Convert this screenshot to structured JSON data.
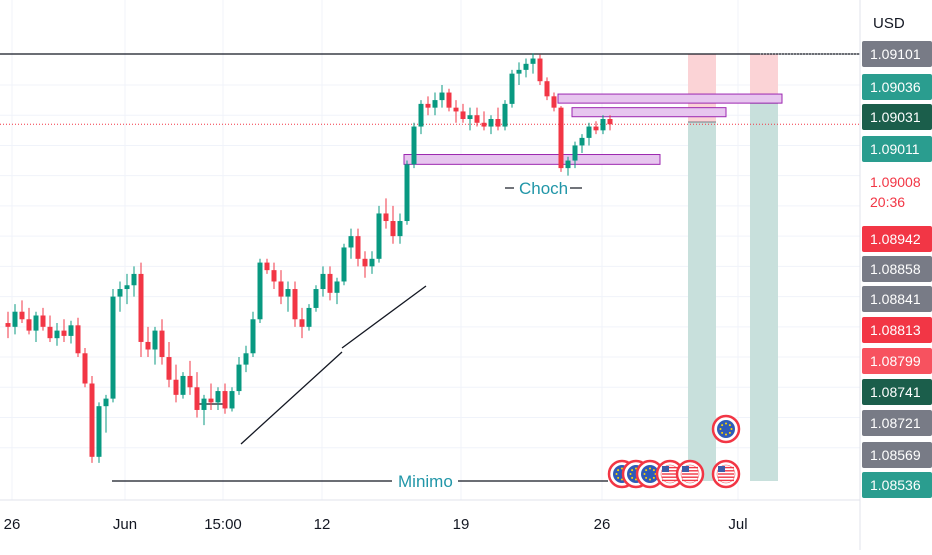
{
  "chart_data": {
    "type": "candlestick",
    "currency": "USD",
    "x_ticks": [
      "26",
      "Jun",
      "15:00",
      "12",
      "19",
      "26",
      "Jul"
    ],
    "price_range": [
      1.0852,
      1.0913
    ],
    "candles": [
      [
        1.08745,
        1.0876,
        1.08725,
        1.0874
      ],
      [
        1.0874,
        1.0877,
        1.0873,
        1.0876
      ],
      [
        1.0876,
        1.08775,
        1.08745,
        1.0875
      ],
      [
        1.0875,
        1.08765,
        1.0873,
        1.08735
      ],
      [
        1.08735,
        1.0876,
        1.0872,
        1.08755
      ],
      [
        1.08755,
        1.08765,
        1.08735,
        1.0874
      ],
      [
        1.0874,
        1.08755,
        1.0872,
        1.08725
      ],
      [
        1.08725,
        1.08745,
        1.08715,
        1.08735
      ],
      [
        1.08735,
        1.0875,
        1.0872,
        1.08728
      ],
      [
        1.08728,
        1.08748,
        1.08718,
        1.08742
      ],
      [
        1.08742,
        1.08752,
        1.087,
        1.08705
      ],
      [
        1.08705,
        1.08712,
        1.0866,
        1.08665
      ],
      [
        1.08665,
        1.08675,
        1.0856,
        1.08568
      ],
      [
        1.08568,
        1.0864,
        1.0856,
        1.08635
      ],
      [
        1.08635,
        1.0865,
        1.086,
        1.08645
      ],
      [
        1.08645,
        1.0879,
        1.0864,
        1.0878
      ],
      [
        1.0878,
        1.088,
        1.0876,
        1.0879
      ],
      [
        1.0879,
        1.0881,
        1.0877,
        1.08795
      ],
      [
        1.08795,
        1.0882,
        1.0878,
        1.0881
      ],
      [
        1.0881,
        1.08825,
        1.087,
        1.0872
      ],
      [
        1.0872,
        1.0874,
        1.087,
        1.0871
      ],
      [
        1.0871,
        1.0874,
        1.0869,
        1.08735
      ],
      [
        1.08735,
        1.0875,
        1.0869,
        1.087
      ],
      [
        1.087,
        1.0872,
        1.0866,
        1.0867
      ],
      [
        1.0867,
        1.0869,
        1.0864,
        1.0865
      ],
      [
        1.0865,
        1.0868,
        1.08645,
        1.08675
      ],
      [
        1.08675,
        1.08695,
        1.0865,
        1.0866
      ],
      [
        1.0866,
        1.0868,
        1.0862,
        1.0863
      ],
      [
        1.0863,
        1.0865,
        1.0861,
        1.08645
      ],
      [
        1.08645,
        1.08665,
        1.0863,
        1.0864
      ],
      [
        1.0864,
        1.0866,
        1.0863,
        1.08655
      ],
      [
        1.08655,
        1.08665,
        1.08625,
        1.08632
      ],
      [
        1.08632,
        1.0866,
        1.08628,
        1.08655
      ],
      [
        1.08655,
        1.087,
        1.0865,
        1.0869
      ],
      [
        1.0869,
        1.08715,
        1.0868,
        1.08705
      ],
      [
        1.08705,
        1.0876,
        1.087,
        1.0875
      ],
      [
        1.0875,
        1.0883,
        1.08745,
        1.08825
      ],
      [
        1.08825,
        1.0883,
        1.0881,
        1.08815
      ],
      [
        1.08815,
        1.08825,
        1.0879,
        1.088
      ],
      [
        1.088,
        1.08815,
        1.0877,
        1.0878
      ],
      [
        1.0878,
        1.088,
        1.0876,
        1.0879
      ],
      [
        1.0879,
        1.088,
        1.0874,
        1.0875
      ],
      [
        1.0875,
        1.08765,
        1.08725,
        1.0874
      ],
      [
        1.0874,
        1.0877,
        1.08735,
        1.08765
      ],
      [
        1.08765,
        1.08795,
        1.0876,
        1.0879
      ],
      [
        1.0879,
        1.0882,
        1.0878,
        1.0881
      ],
      [
        1.0881,
        1.0882,
        1.08775,
        1.08785
      ],
      [
        1.08785,
        1.08805,
        1.0877,
        1.088
      ],
      [
        1.088,
        1.0885,
        1.08795,
        1.08845
      ],
      [
        1.08845,
        1.0887,
        1.0883,
        1.0886
      ],
      [
        1.0886,
        1.0887,
        1.0882,
        1.0883
      ],
      [
        1.0883,
        1.0884,
        1.08805,
        1.0882
      ],
      [
        1.0882,
        1.0884,
        1.0881,
        1.0883
      ],
      [
        1.0883,
        1.089,
        1.08825,
        1.0889
      ],
      [
        1.0889,
        1.0891,
        1.0887,
        1.0888
      ],
      [
        1.0888,
        1.089,
        1.0885,
        1.0886
      ],
      [
        1.0886,
        1.0889,
        1.0885,
        1.0888
      ],
      [
        1.0888,
        1.0896,
        1.08875,
        1.08955
      ],
      [
        1.08955,
        1.0901,
        1.0895,
        1.09005
      ],
      [
        1.09005,
        1.0904,
        1.08995,
        1.09035
      ],
      [
        1.09035,
        1.09045,
        1.0902,
        1.0903
      ],
      [
        1.0903,
        1.0905,
        1.0902,
        1.0904
      ],
      [
        1.0904,
        1.0906,
        1.0903,
        1.0905
      ],
      [
        1.0905,
        1.09055,
        1.09025,
        1.0903
      ],
      [
        1.0903,
        1.0904,
        1.0901,
        1.09025
      ],
      [
        1.09025,
        1.09035,
        1.0901,
        1.09015
      ],
      [
        1.09015,
        1.0903,
        1.09,
        1.0902
      ],
      [
        1.0902,
        1.0903,
        1.09005,
        1.0901
      ],
      [
        1.0901,
        1.09025,
        1.09,
        1.09005
      ],
      [
        1.09005,
        1.0902,
        1.08995,
        1.09015
      ],
      [
        1.09015,
        1.0903,
        1.09,
        1.09005
      ],
      [
        1.09005,
        1.0904,
        1.09,
        1.09035
      ],
      [
        1.09035,
        1.0908,
        1.0903,
        1.09075
      ],
      [
        1.09075,
        1.0909,
        1.0906,
        1.0908
      ],
      [
        1.0908,
        1.09095,
        1.0907,
        1.09088
      ],
      [
        1.09088,
        1.09102,
        1.09075,
        1.09095
      ],
      [
        1.09095,
        1.091,
        1.0906,
        1.09065
      ],
      [
        1.09065,
        1.0907,
        1.0904,
        1.09045
      ],
      [
        1.09045,
        1.0905,
        1.09025,
        1.0903
      ],
      [
        1.0903,
        1.09032,
        1.08945,
        1.0895
      ],
      [
        1.0895,
        1.08965,
        1.0894,
        1.0896
      ],
      [
        1.0896,
        1.08985,
        1.0895,
        1.0898
      ],
      [
        1.0898,
        1.08995,
        1.0897,
        1.0899
      ],
      [
        1.0899,
        1.0901,
        1.0898,
        1.09005
      ],
      [
        1.09005,
        1.09012,
        1.08995,
        1.09
      ],
      [
        1.09,
        1.0902,
        1.08995,
        1.09015
      ],
      [
        1.09015,
        1.0902,
        1.09,
        1.09008
      ]
    ],
    "ob_zones": [
      {
        "from_index": 79,
        "to_x": 782,
        "top": 1.09048,
        "bottom": 1.09036
      },
      {
        "from_index": 81,
        "to_x": 726,
        "top": 1.0903,
        "bottom": 1.09018
      },
      {
        "from_index": 57,
        "to_x": 660,
        "top": 1.08968,
        "bottom": 1.08955
      }
    ],
    "positions": [
      {
        "x": 688,
        "w": 28,
        "top": 1.09101,
        "entry": 1.09011,
        "stop_top": 1.09101,
        "target": 1.08536
      },
      {
        "x": 750,
        "w": 28,
        "top": 1.09101,
        "entry": 1.09036,
        "target": 1.08536
      }
    ],
    "annotations": [
      {
        "kind": "choch",
        "text": "Choch"
      },
      {
        "kind": "minimo",
        "text": "Minimo"
      }
    ],
    "price_labels": [
      {
        "value": "1.09101",
        "color": "#787b86"
      },
      {
        "value": "1.09036",
        "color": "#2a9d8f"
      },
      {
        "value": "1.09031",
        "color": "#1b5e4b"
      },
      {
        "value": "1.09011",
        "color": "#2a9d8f"
      },
      {
        "value": "1.09008",
        "sub": "20:36",
        "color": "#f23645",
        "bg": "#ffffff"
      },
      {
        "value": "1.08942",
        "color": "#f23645"
      },
      {
        "value": "1.08858",
        "color": "#787b86"
      },
      {
        "value": "1.08841",
        "color": "#787b86"
      },
      {
        "value": "1.08813",
        "color": "#f23645"
      },
      {
        "value": "1.08799",
        "color": "#f7525f"
      },
      {
        "value": "1.08741",
        "color": "#1b5e4b"
      },
      {
        "value": "1.08721",
        "color": "#787b86"
      },
      {
        "value": "1.08569",
        "color": "#787b86"
      },
      {
        "value": "1.08536",
        "color": "#2a9d8f"
      }
    ],
    "current_price": 1.09008,
    "colors": {
      "up": "#089981",
      "down": "#f23645",
      "zone_fill": "#e7c6ef",
      "zone_stroke": "#9c27b0",
      "profit": "#c8e0dc",
      "loss": "#fbd3d6",
      "text": "#131722",
      "grid": "#f0f3fa"
    }
  }
}
